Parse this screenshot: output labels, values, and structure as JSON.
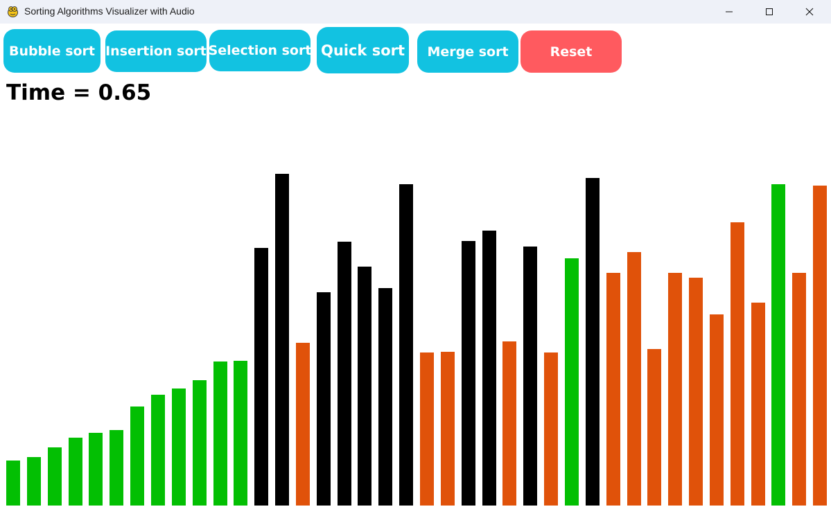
{
  "window": {
    "title": "Sorting Algorithms Visualizer with Audio"
  },
  "buttons": {
    "bubble": "Bubble sort",
    "insertion": "Insertion sort",
    "selection": "Selection sort",
    "quick": "Quick sort",
    "merge": "Merge sort",
    "reset": "Reset"
  },
  "status": {
    "time_prefix": "Time = ",
    "time_value": "0.65"
  },
  "colors": {
    "button": "#12c2e1",
    "reset": "#ff5a5f",
    "sorted": "#03bf03",
    "active": "#000000",
    "unsorted": "#e0520a"
  },
  "chart_data": {
    "type": "bar",
    "values": [
      65,
      70,
      84,
      98,
      105,
      109,
      143,
      160,
      169,
      181,
      208,
      209,
      372,
      479,
      235,
      308,
      381,
      345,
      314,
      464,
      221,
      222,
      382,
      397,
      237,
      374,
      221,
      357,
      473,
      336,
      366,
      226,
      336,
      329,
      276,
      409,
      293,
      464,
      336,
      462
    ],
    "states": [
      "sorted",
      "sorted",
      "sorted",
      "sorted",
      "sorted",
      "sorted",
      "sorted",
      "sorted",
      "sorted",
      "sorted",
      "sorted",
      "sorted",
      "active",
      "active",
      "unsorted",
      "active",
      "active",
      "active",
      "active",
      "active",
      "unsorted",
      "unsorted",
      "active",
      "active",
      "unsorted",
      "active",
      "unsorted",
      "sorted",
      "active",
      "unsorted",
      "unsorted",
      "unsorted",
      "unsorted",
      "unsorted",
      "unsorted",
      "unsorted",
      "unsorted",
      "sorted",
      "unsorted",
      "unsorted"
    ]
  }
}
